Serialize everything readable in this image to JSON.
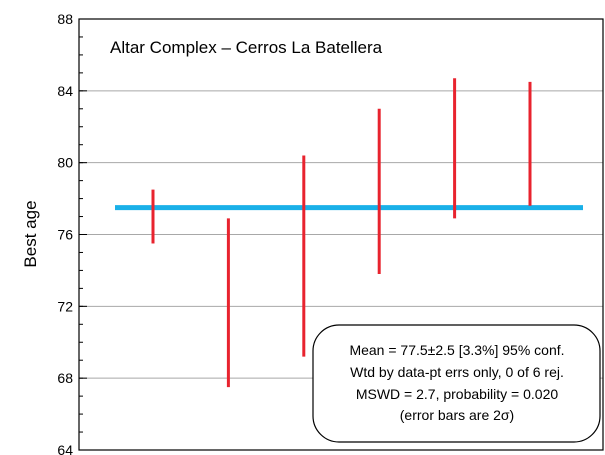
{
  "chart_data": {
    "type": "error-bar",
    "title": "Altar Complex – Cerros La Batellera",
    "ylabel": "Best age",
    "ylim": [
      64,
      88
    ],
    "yticks_labeled": [
      64,
      68,
      72,
      76,
      80,
      84,
      88
    ],
    "yticks_minor_step": 1,
    "grid": true,
    "series": [
      {
        "values": [
          {
            "low": 75.5,
            "high": 78.5
          },
          {
            "low": 67.5,
            "high": 76.9
          },
          {
            "low": 69.2,
            "high": 80.4
          },
          {
            "low": 73.8,
            "high": 83.0
          },
          {
            "low": 76.9,
            "high": 84.7
          },
          {
            "low": 77.6,
            "high": 84.5
          }
        ],
        "color": "#e8232e"
      }
    ],
    "mean": {
      "value": 77.5,
      "color": "#1ab0e8"
    },
    "stats_box": {
      "lines": [
        "Mean = 77.5±2.5  [3.3%]  95% conf.",
        "Wtd by data-pt errs only, 0 of 6 rej.",
        "MSWD = 2.7, probability = 0.020",
        "(error bars are 2σ)"
      ]
    }
  }
}
